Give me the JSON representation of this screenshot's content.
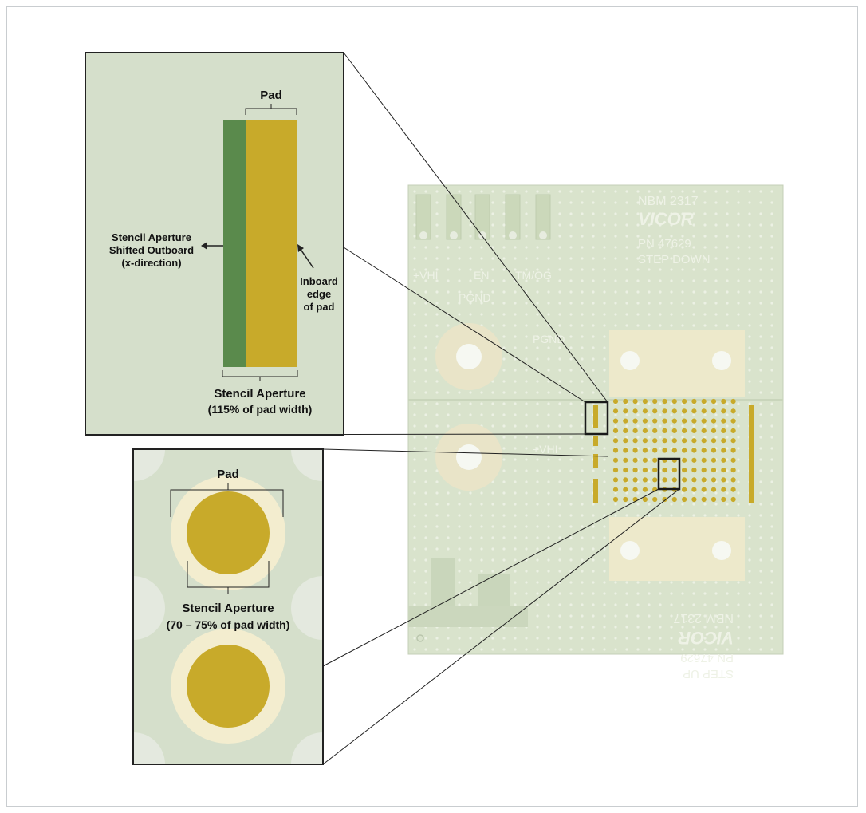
{
  "board": {
    "part": "NBM 2317",
    "brand": "VICOR",
    "pn": "PN 47629",
    "step_down": "STEP DOWN",
    "step_up": "STEP UP",
    "pins": [
      "+VHI",
      "EN",
      "TM/OG",
      "PGND"
    ],
    "pgnd": "PGND",
    "vhi": "+VHI"
  },
  "top_inset": {
    "pad_label": "Pad",
    "aperture_note_line1": "Stencil Aperture",
    "aperture_note_line2": "Shifted Outboard",
    "aperture_note_line3": "(x-direction)",
    "inboard_line1": "Inboard",
    "inboard_line2": "edge",
    "inboard_line3": "of pad",
    "aperture_label_line1": "Stencil Aperture",
    "aperture_label_line2": "(115% of pad width)"
  },
  "bottom_inset": {
    "pad_label": "Pad",
    "aperture_label_line1": "Stencil Aperture",
    "aperture_label_line2": "(70 – 75% of pad width)"
  },
  "colors": {
    "inset_bg": "#d5dfcb",
    "gold": "#c8aa2a",
    "green": "#5a8a4c",
    "cream": "#f3edcf",
    "board": "#d9e3cc"
  }
}
